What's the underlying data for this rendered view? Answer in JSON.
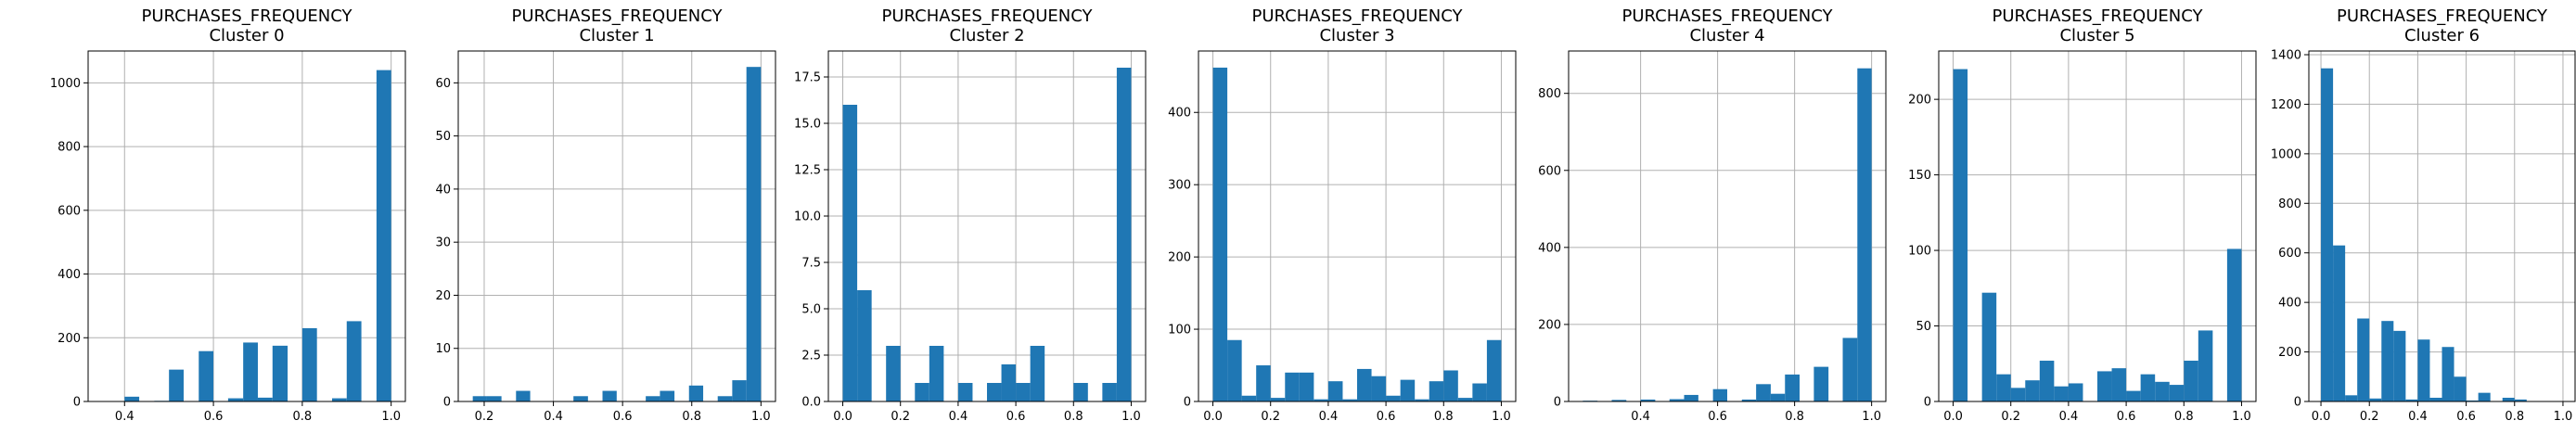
{
  "style": {
    "bar_color": "#1f77b4",
    "grid_color": "#b0b0b0",
    "axis_color": "#000000"
  },
  "chart_data": [
    {
      "type": "bar",
      "title": "PURCHASES_FREQUENCY",
      "subtitle": "Cluster 0",
      "xlim": [
        0.318,
        1.032
      ],
      "ylim": [
        0,
        1100
      ],
      "xticks": [
        0.4,
        0.6,
        0.8,
        1.0
      ],
      "xtick_labels": [
        "0.4",
        "0.6",
        "0.8",
        "1.0"
      ],
      "yticks": [
        0,
        200,
        400,
        600,
        800,
        1000
      ],
      "ytick_labels": [
        "0",
        "200",
        "400",
        "600",
        "800",
        "1000"
      ],
      "grid": true,
      "bins": [
        {
          "x0": 0.4,
          "x1": 0.433,
          "value": 15
        },
        {
          "x0": 0.467,
          "x1": 0.5,
          "value": 2
        },
        {
          "x0": 0.5,
          "x1": 0.533,
          "value": 100
        },
        {
          "x0": 0.567,
          "x1": 0.6,
          "value": 158
        },
        {
          "x0": 0.633,
          "x1": 0.667,
          "value": 10
        },
        {
          "x0": 0.667,
          "x1": 0.7,
          "value": 185
        },
        {
          "x0": 0.7,
          "x1": 0.733,
          "value": 12
        },
        {
          "x0": 0.733,
          "x1": 0.767,
          "value": 175
        },
        {
          "x0": 0.8,
          "x1": 0.833,
          "value": 230
        },
        {
          "x0": 0.867,
          "x1": 0.9,
          "value": 10
        },
        {
          "x0": 0.9,
          "x1": 0.933,
          "value": 252
        },
        {
          "x0": 0.967,
          "x1": 1.0,
          "value": 1040
        }
      ]
    },
    {
      "type": "bar",
      "title": "PURCHASES_FREQUENCY",
      "subtitle": "Cluster 1",
      "xlim": [
        0.125,
        1.042
      ],
      "ylim": [
        0,
        66
      ],
      "xticks": [
        0.2,
        0.4,
        0.6,
        0.8,
        1.0
      ],
      "xtick_labels": [
        "0.2",
        "0.4",
        "0.6",
        "0.8",
        "1.0"
      ],
      "yticks": [
        0,
        10,
        20,
        30,
        40,
        50,
        60
      ],
      "ytick_labels": [
        "0",
        "10",
        "20",
        "30",
        "40",
        "50",
        "60"
      ],
      "grid": true,
      "bins": [
        {
          "x0": 0.167,
          "x1": 0.208,
          "value": 1
        },
        {
          "x0": 0.208,
          "x1": 0.25,
          "value": 1
        },
        {
          "x0": 0.292,
          "x1": 0.333,
          "value": 2
        },
        {
          "x0": 0.458,
          "x1": 0.5,
          "value": 1
        },
        {
          "x0": 0.542,
          "x1": 0.583,
          "value": 2
        },
        {
          "x0": 0.667,
          "x1": 0.708,
          "value": 1
        },
        {
          "x0": 0.708,
          "x1": 0.75,
          "value": 2
        },
        {
          "x0": 0.792,
          "x1": 0.833,
          "value": 3
        },
        {
          "x0": 0.875,
          "x1": 0.917,
          "value": 1
        },
        {
          "x0": 0.917,
          "x1": 0.958,
          "value": 4
        },
        {
          "x0": 0.958,
          "x1": 1.0,
          "value": 63
        }
      ]
    },
    {
      "type": "bar",
      "title": "PURCHASES_FREQUENCY",
      "subtitle": "Cluster 2",
      "xlim": [
        -0.05,
        1.05
      ],
      "ylim": [
        0,
        18.9
      ],
      "xticks": [
        0.0,
        0.2,
        0.4,
        0.6,
        0.8,
        1.0
      ],
      "xtick_labels": [
        "0.0",
        "0.2",
        "0.4",
        "0.6",
        "0.8",
        "1.0"
      ],
      "yticks": [
        0,
        2.5,
        5,
        7.5,
        10,
        12.5,
        15,
        17.5
      ],
      "ytick_labels": [
        "0.0",
        "2.5",
        "5.0",
        "7.5",
        "10.0",
        "12.5",
        "15.0",
        "17.5"
      ],
      "grid": true,
      "bins": [
        {
          "x0": 0.0,
          "x1": 0.05,
          "value": 16
        },
        {
          "x0": 0.05,
          "x1": 0.1,
          "value": 6
        },
        {
          "x0": 0.15,
          "x1": 0.2,
          "value": 3
        },
        {
          "x0": 0.25,
          "x1": 0.3,
          "value": 1
        },
        {
          "x0": 0.3,
          "x1": 0.35,
          "value": 3
        },
        {
          "x0": 0.4,
          "x1": 0.45,
          "value": 1
        },
        {
          "x0": 0.5,
          "x1": 0.55,
          "value": 1
        },
        {
          "x0": 0.55,
          "x1": 0.6,
          "value": 2
        },
        {
          "x0": 0.6,
          "x1": 0.65,
          "value": 1
        },
        {
          "x0": 0.65,
          "x1": 0.7,
          "value": 3
        },
        {
          "x0": 0.8,
          "x1": 0.85,
          "value": 1
        },
        {
          "x0": 0.9,
          "x1": 0.95,
          "value": 1
        },
        {
          "x0": 0.95,
          "x1": 1.0,
          "value": 18
        }
      ]
    },
    {
      "type": "bar",
      "title": "PURCHASES_FREQUENCY",
      "subtitle": "Cluster 3",
      "xlim": [
        -0.05,
        1.05
      ],
      "ylim": [
        0,
        485
      ],
      "xticks": [
        0.0,
        0.2,
        0.4,
        0.6,
        0.8,
        1.0
      ],
      "xtick_labels": [
        "0.0",
        "0.2",
        "0.4",
        "0.6",
        "0.8",
        "1.0"
      ],
      "yticks": [
        0,
        100,
        200,
        300,
        400
      ],
      "ytick_labels": [
        "0",
        "100",
        "200",
        "300",
        "400"
      ],
      "grid": true,
      "bins": [
        {
          "x0": 0.0,
          "x1": 0.05,
          "value": 462
        },
        {
          "x0": 0.05,
          "x1": 0.1,
          "value": 85
        },
        {
          "x0": 0.1,
          "x1": 0.15,
          "value": 8
        },
        {
          "x0": 0.15,
          "x1": 0.2,
          "value": 50
        },
        {
          "x0": 0.2,
          "x1": 0.25,
          "value": 5
        },
        {
          "x0": 0.25,
          "x1": 0.3,
          "value": 40
        },
        {
          "x0": 0.3,
          "x1": 0.35,
          "value": 40
        },
        {
          "x0": 0.35,
          "x1": 0.4,
          "value": 3
        },
        {
          "x0": 0.4,
          "x1": 0.45,
          "value": 28
        },
        {
          "x0": 0.45,
          "x1": 0.5,
          "value": 3
        },
        {
          "x0": 0.5,
          "x1": 0.55,
          "value": 45
        },
        {
          "x0": 0.55,
          "x1": 0.6,
          "value": 35
        },
        {
          "x0": 0.6,
          "x1": 0.65,
          "value": 8
        },
        {
          "x0": 0.65,
          "x1": 0.7,
          "value": 30
        },
        {
          "x0": 0.7,
          "x1": 0.75,
          "value": 3
        },
        {
          "x0": 0.75,
          "x1": 0.8,
          "value": 28
        },
        {
          "x0": 0.8,
          "x1": 0.85,
          "value": 43
        },
        {
          "x0": 0.85,
          "x1": 0.9,
          "value": 5
        },
        {
          "x0": 0.9,
          "x1": 0.95,
          "value": 25
        },
        {
          "x0": 0.95,
          "x1": 1.0,
          "value": 85
        }
      ]
    },
    {
      "type": "bar",
      "title": "PURCHASES_FREQUENCY",
      "subtitle": "Cluster 4",
      "xlim": [
        0.213,
        1.037
      ],
      "ylim": [
        0,
        910
      ],
      "xticks": [
        0.4,
        0.6,
        0.8,
        1.0
      ],
      "xtick_labels": [
        "0.4",
        "0.6",
        "0.8",
        "1.0"
      ],
      "yticks": [
        0,
        200,
        400,
        600,
        800
      ],
      "ytick_labels": [
        "0",
        "200",
        "400",
        "600",
        "800"
      ],
      "grid": true,
      "bins": [
        {
          "x0": 0.25,
          "x1": 0.288,
          "value": 2
        },
        {
          "x0": 0.325,
          "x1": 0.363,
          "value": 4
        },
        {
          "x0": 0.363,
          "x1": 0.4,
          "value": 1
        },
        {
          "x0": 0.4,
          "x1": 0.438,
          "value": 5
        },
        {
          "x0": 0.475,
          "x1": 0.513,
          "value": 6
        },
        {
          "x0": 0.513,
          "x1": 0.55,
          "value": 17
        },
        {
          "x0": 0.588,
          "x1": 0.625,
          "value": 32
        },
        {
          "x0": 0.663,
          "x1": 0.7,
          "value": 5
        },
        {
          "x0": 0.7,
          "x1": 0.738,
          "value": 45
        },
        {
          "x0": 0.738,
          "x1": 0.775,
          "value": 20
        },
        {
          "x0": 0.775,
          "x1": 0.813,
          "value": 70
        },
        {
          "x0": 0.85,
          "x1": 0.888,
          "value": 90
        },
        {
          "x0": 0.925,
          "x1": 0.963,
          "value": 165
        },
        {
          "x0": 0.963,
          "x1": 1.0,
          "value": 865
        }
      ]
    },
    {
      "type": "bar",
      "title": "PURCHASES_FREQUENCY",
      "subtitle": "Cluster 5",
      "xlim": [
        -0.05,
        1.05
      ],
      "ylim": [
        0,
        232
      ],
      "xticks": [
        0.0,
        0.2,
        0.4,
        0.6,
        0.8,
        1.0
      ],
      "xtick_labels": [
        "0.0",
        "0.2",
        "0.4",
        "0.6",
        "0.8",
        "1.0"
      ],
      "yticks": [
        0,
        50,
        100,
        150,
        200
      ],
      "ytick_labels": [
        "0",
        "50",
        "100",
        "150",
        "200"
      ],
      "grid": true,
      "bins": [
        {
          "x0": 0.0,
          "x1": 0.05,
          "value": 220
        },
        {
          "x0": 0.1,
          "x1": 0.15,
          "value": 72
        },
        {
          "x0": 0.15,
          "x1": 0.2,
          "value": 18
        },
        {
          "x0": 0.2,
          "x1": 0.25,
          "value": 9
        },
        {
          "x0": 0.25,
          "x1": 0.3,
          "value": 14
        },
        {
          "x0": 0.3,
          "x1": 0.35,
          "value": 27
        },
        {
          "x0": 0.35,
          "x1": 0.4,
          "value": 10
        },
        {
          "x0": 0.4,
          "x1": 0.45,
          "value": 12
        },
        {
          "x0": 0.5,
          "x1": 0.55,
          "value": 20
        },
        {
          "x0": 0.55,
          "x1": 0.6,
          "value": 22
        },
        {
          "x0": 0.6,
          "x1": 0.65,
          "value": 7
        },
        {
          "x0": 0.65,
          "x1": 0.7,
          "value": 18
        },
        {
          "x0": 0.7,
          "x1": 0.75,
          "value": 13
        },
        {
          "x0": 0.75,
          "x1": 0.8,
          "value": 11
        },
        {
          "x0": 0.8,
          "x1": 0.85,
          "value": 27
        },
        {
          "x0": 0.85,
          "x1": 0.9,
          "value": 47
        },
        {
          "x0": 0.95,
          "x1": 1.0,
          "value": 101
        }
      ]
    },
    {
      "type": "bar",
      "title": "PURCHASES_FREQUENCY",
      "subtitle": "Cluster 6",
      "xlim": [
        -0.05,
        1.05
      ],
      "ylim": [
        0,
        1415
      ],
      "xticks": [
        0.0,
        0.2,
        0.4,
        0.6,
        0.8,
        1.0
      ],
      "xtick_labels": [
        "0.0",
        "0.2",
        "0.4",
        "0.6",
        "0.8",
        "1.0"
      ],
      "yticks": [
        0,
        200,
        400,
        600,
        800,
        1000,
        1200,
        1400
      ],
      "ytick_labels": [
        "0",
        "200",
        "400",
        "600",
        "800",
        "1000",
        "1200",
        "1400"
      ],
      "grid": true,
      "bins": [
        {
          "x0": 0.0,
          "x1": 0.05,
          "value": 1345
        },
        {
          "x0": 0.05,
          "x1": 0.1,
          "value": 630
        },
        {
          "x0": 0.1,
          "x1": 0.15,
          "value": 25
        },
        {
          "x0": 0.15,
          "x1": 0.2,
          "value": 335
        },
        {
          "x0": 0.2,
          "x1": 0.25,
          "value": 12
        },
        {
          "x0": 0.25,
          "x1": 0.3,
          "value": 325
        },
        {
          "x0": 0.3,
          "x1": 0.35,
          "value": 285
        },
        {
          "x0": 0.35,
          "x1": 0.4,
          "value": 8
        },
        {
          "x0": 0.4,
          "x1": 0.45,
          "value": 250
        },
        {
          "x0": 0.45,
          "x1": 0.5,
          "value": 15
        },
        {
          "x0": 0.5,
          "x1": 0.55,
          "value": 220
        },
        {
          "x0": 0.55,
          "x1": 0.6,
          "value": 100
        },
        {
          "x0": 0.6,
          "x1": 0.65,
          "value": 4
        },
        {
          "x0": 0.65,
          "x1": 0.7,
          "value": 35
        },
        {
          "x0": 0.75,
          "x1": 0.8,
          "value": 15
        },
        {
          "x0": 0.8,
          "x1": 0.85,
          "value": 8
        },
        {
          "x0": 0.9,
          "x1": 0.95,
          "value": 1
        },
        {
          "x0": 0.95,
          "x1": 1.0,
          "value": 1
        }
      ]
    }
  ]
}
